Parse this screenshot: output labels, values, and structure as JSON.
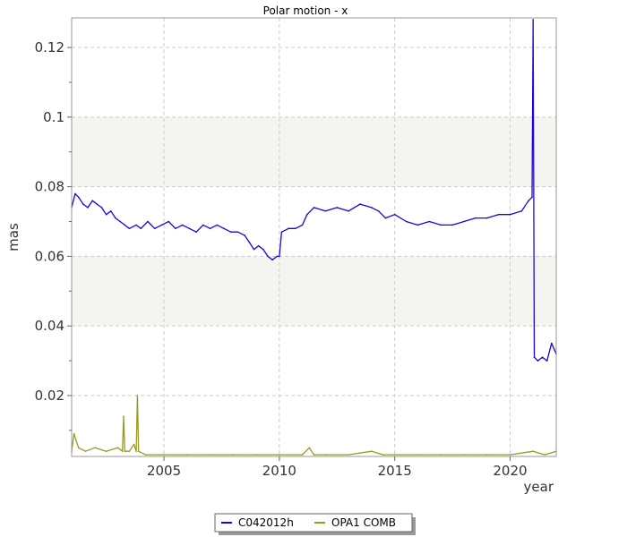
{
  "chart_data": {
    "type": "line",
    "title": "Polar motion - x",
    "xlabel": "year",
    "ylabel": "mas",
    "xlim": [
      2001.0,
      2022.0
    ],
    "ylim": [
      0.0025,
      0.1285
    ],
    "x_ticks": [
      2005,
      2010,
      2015,
      2020
    ],
    "y_ticks": [
      0.02,
      0.04,
      0.06,
      0.08,
      0.1,
      0.12
    ],
    "x_tick_labels": [
      "2005",
      "2010",
      "2015",
      "2020"
    ],
    "y_tick_labels": [
      "0.02",
      "0.04",
      "0.06",
      "0.08",
      "0.1",
      "0.12"
    ],
    "grid": true,
    "bands": [
      [
        0.04,
        0.06
      ],
      [
        0.08,
        0.1
      ]
    ],
    "legend_position": "bottom-center",
    "series": [
      {
        "name": "C042012h",
        "color": "#2200dd",
        "x": [
          2001.0,
          2001.15,
          2001.3,
          2001.5,
          2001.7,
          2001.9,
          2002.1,
          2002.3,
          2002.5,
          2002.7,
          2002.9,
          2003.1,
          2003.3,
          2003.5,
          2003.8,
          2004.0,
          2004.3,
          2004.6,
          2004.9,
          2005.2,
          2005.5,
          2005.8,
          2006.1,
          2006.4,
          2006.7,
          2007.0,
          2007.3,
          2007.6,
          2007.9,
          2008.2,
          2008.5,
          2008.7,
          2008.9,
          2009.1,
          2009.3,
          2009.5,
          2009.7,
          2009.9,
          2010.0,
          2010.1,
          2010.4,
          2010.7,
          2011.0,
          2011.2,
          2011.5,
          2012.0,
          2012.5,
          2013.0,
          2013.5,
          2014.0,
          2014.3,
          2014.6,
          2015.0,
          2015.5,
          2016.0,
          2016.5,
          2017.0,
          2017.5,
          2018.0,
          2018.5,
          2019.0,
          2019.5,
          2020.0,
          2020.5,
          2020.8,
          2020.95,
          2021.0,
          2021.05,
          2021.2,
          2021.4,
          2021.6,
          2021.8,
          2022.0
        ],
        "y": [
          0.074,
          0.078,
          0.077,
          0.075,
          0.074,
          0.076,
          0.075,
          0.074,
          0.072,
          0.073,
          0.071,
          0.07,
          0.069,
          0.068,
          0.069,
          0.068,
          0.07,
          0.068,
          0.069,
          0.07,
          0.068,
          0.069,
          0.068,
          0.067,
          0.069,
          0.068,
          0.069,
          0.068,
          0.067,
          0.067,
          0.066,
          0.064,
          0.062,
          0.063,
          0.062,
          0.06,
          0.059,
          0.06,
          0.06,
          0.067,
          0.068,
          0.068,
          0.069,
          0.072,
          0.074,
          0.073,
          0.074,
          0.073,
          0.075,
          0.074,
          0.073,
          0.071,
          0.072,
          0.07,
          0.069,
          0.07,
          0.069,
          0.069,
          0.07,
          0.071,
          0.071,
          0.072,
          0.072,
          0.073,
          0.076,
          0.077,
          0.128,
          0.031,
          0.03,
          0.031,
          0.03,
          0.035,
          0.032
        ]
      },
      {
        "name": "OPA1 COMB",
        "color": "#999922",
        "x": [
          2001.0,
          2001.1,
          2001.3,
          2001.6,
          2002.0,
          2002.5,
          2003.0,
          2003.2,
          2003.25,
          2003.3,
          2003.5,
          2003.7,
          2003.8,
          2003.85,
          2003.9,
          2004.2,
          2005.0,
          2006.0,
          2007.0,
          2008.0,
          2009.0,
          2010.0,
          2011.0,
          2011.3,
          2011.5,
          2012.0,
          2013.0,
          2014.0,
          2014.5,
          2015.0,
          2016.0,
          2017.0,
          2018.0,
          2019.0,
          2020.0,
          2021.0,
          2021.5,
          2022.0
        ],
        "y": [
          0.004,
          0.009,
          0.005,
          0.004,
          0.005,
          0.004,
          0.005,
          0.004,
          0.014,
          0.004,
          0.004,
          0.006,
          0.004,
          0.02,
          0.004,
          0.003,
          0.003,
          0.003,
          0.003,
          0.003,
          0.003,
          0.003,
          0.003,
          0.005,
          0.003,
          0.003,
          0.003,
          0.004,
          0.003,
          0.003,
          0.003,
          0.003,
          0.003,
          0.003,
          0.003,
          0.004,
          0.003,
          0.004
        ]
      }
    ]
  }
}
